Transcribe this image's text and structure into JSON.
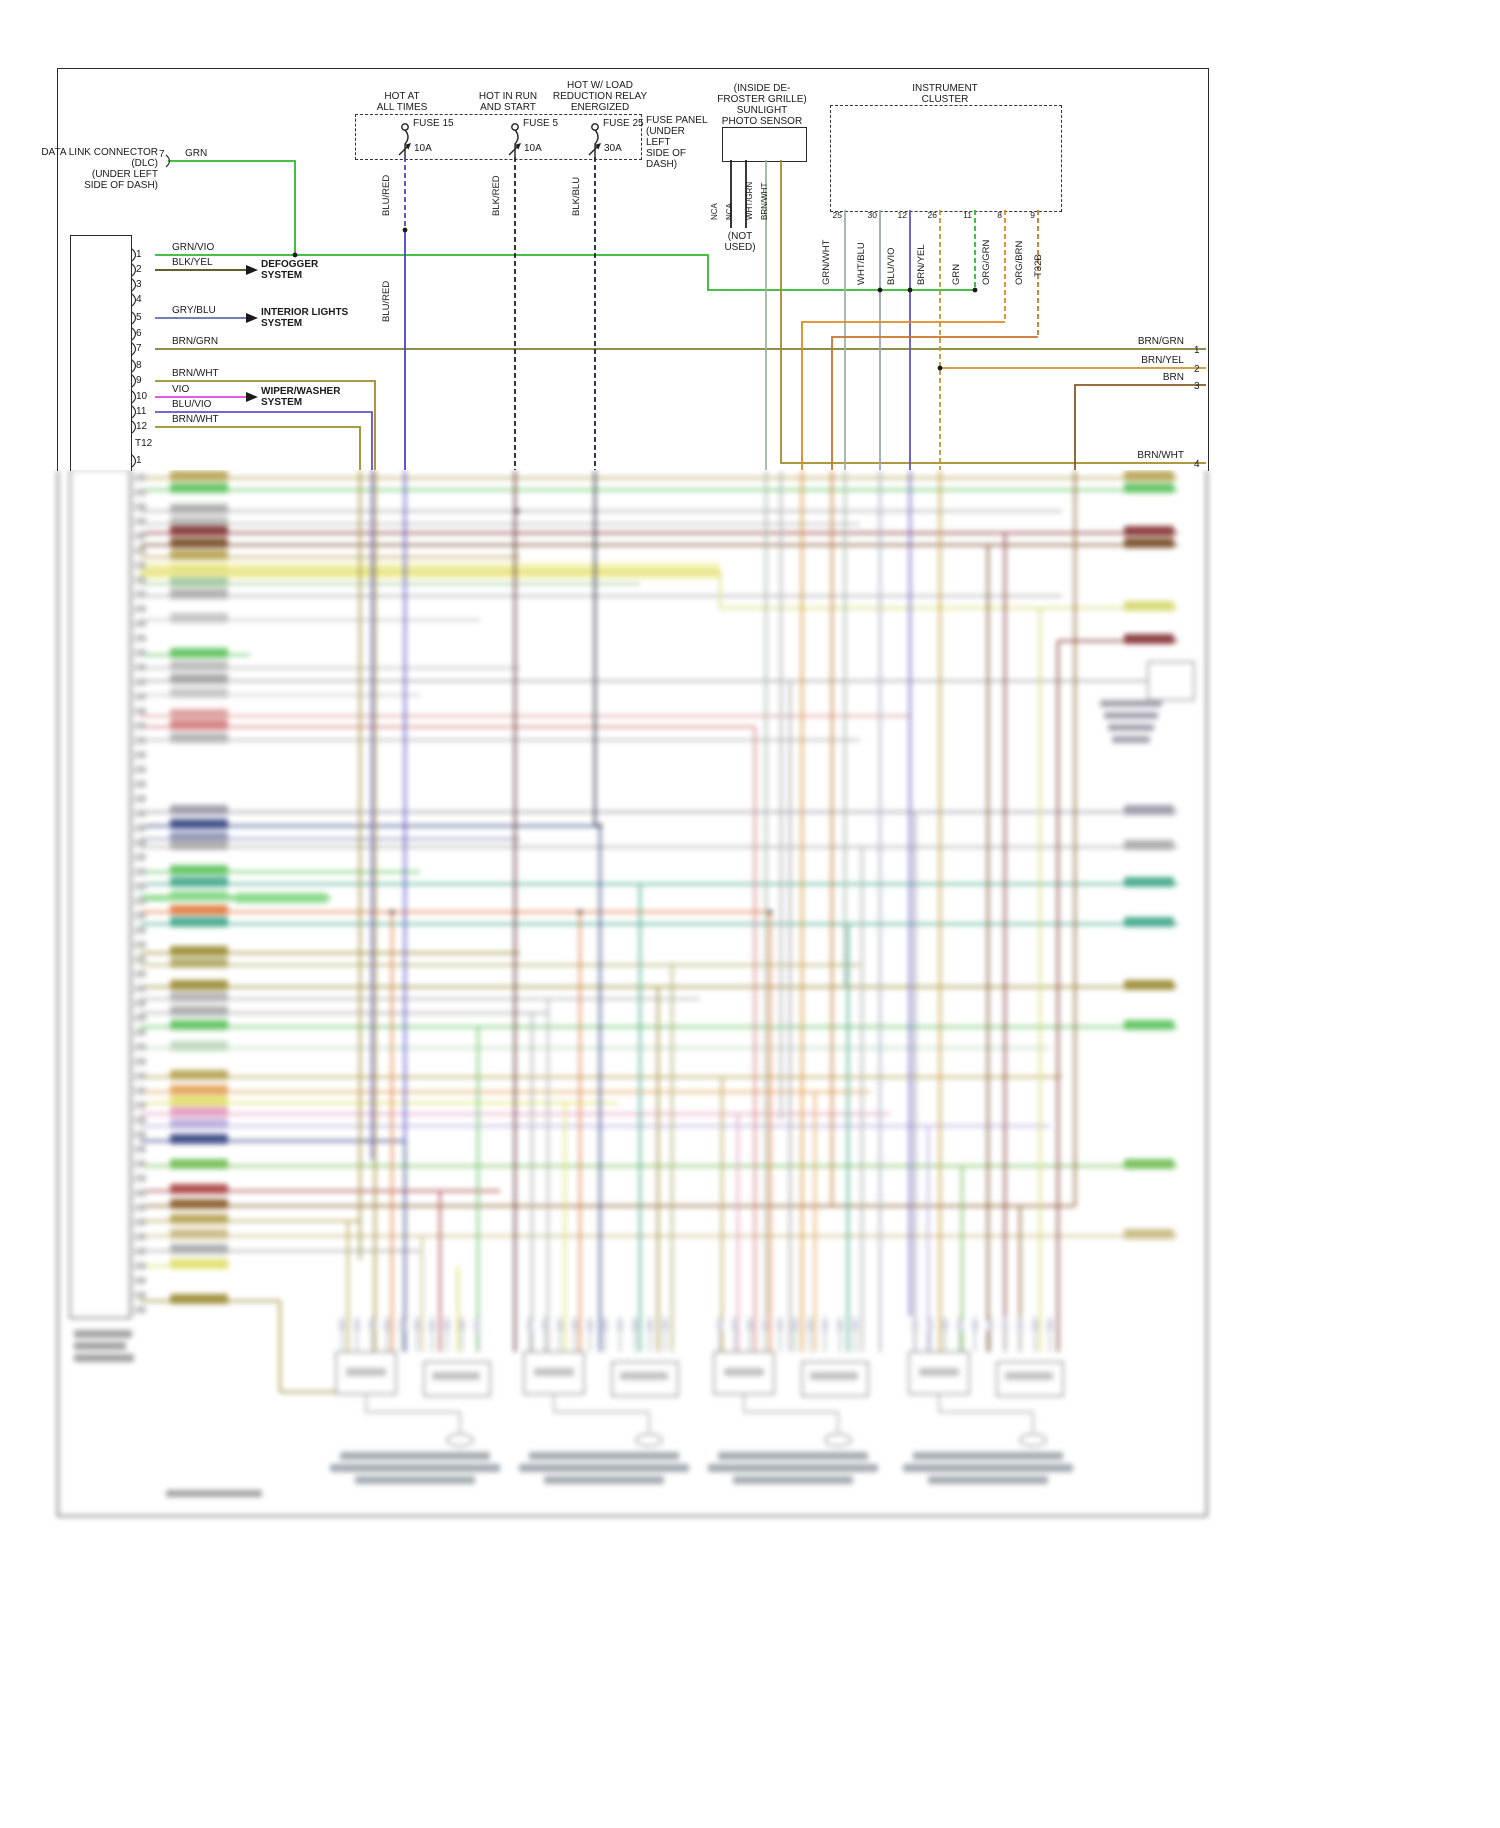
{
  "wire_colors": {
    "blk": "#222222",
    "grn": "#2db82d",
    "grn_vio": "#2db82d",
    "blk_yel": "#4a4a10",
    "gry_blu": "#5c6fae",
    "brn_grn": "#7d8030",
    "brn_wht": "#a08c28",
    "vio": "#e044e0",
    "blu_vio": "#6152cc",
    "blu_red": "#4a44cc",
    "blk_red": "#222222",
    "blk_blu": "#1c2438",
    "grn_wht": "#9fb3a0",
    "wht_blu": "#9aa4b8",
    "brn_yel": "#c8962e",
    "org_grn": "#e08a20",
    "org_brn": "#c87428",
    "brn": "#8a5a22",
    "wht_grn": "#9eb49e"
  },
  "fuse_panel": {
    "box_label": "FUSE PANEL\n(UNDER\nLEFT\nSIDE OF\nDASH)",
    "wire2": "BLU/RED",
    "feeds": [
      {
        "hot": "HOT AT\nALL TIMES",
        "fuse": "FUSE 15",
        "amps": "10A",
        "wire": "BLU/RED"
      },
      {
        "hot": "HOT IN RUN\nAND START",
        "fuse": "FUSE 5",
        "amps": "10A",
        "wire": "BLK/RED"
      },
      {
        "hot": "HOT W/ LOAD\nREDUCTION RELAY\nENERGIZED",
        "fuse": "FUSE 25",
        "amps": "30A",
        "wire": "BLK/BLU"
      }
    ]
  },
  "photo_sensor": {
    "label": "(INSIDE DE-\nFROSTER GRILLE)\nSUNLIGHT\nPHOTO SENSOR",
    "not_used": "(NOT\nUSED)",
    "leads": [
      "NCA",
      "NCA",
      "WHT/GRN",
      "BRN/WHT"
    ]
  },
  "instrument_cluster": {
    "label": "INSTRUMENT\nCLUSTER",
    "connector_id": "T32B",
    "pins": [
      {
        "pin": "25",
        "wire": "GRN/WHT"
      },
      {
        "pin": "30",
        "wire": "WHT/BLU"
      },
      {
        "pin": "12",
        "wire": "BLU/VIO"
      },
      {
        "pin": "26",
        "wire": "BRN/YEL"
      },
      {
        "pin": "11",
        "wire": "GRN"
      },
      {
        "pin": "8",
        "wire": "ORG/GRN"
      },
      {
        "pin": "9",
        "wire": "ORG/BRN"
      }
    ]
  },
  "dlc": {
    "label": "DATA LINK CONNECTOR\n(DLC)\n(UNDER LEFT\nSIDE OF DASH)",
    "pin": "7",
    "wire": "GRN"
  },
  "left_connector": {
    "section": "T12",
    "next_pin": "1",
    "pins": [
      {
        "pin": "1",
        "wire": "GRN/VIO"
      },
      {
        "pin": "2",
        "wire": "BLK/YEL"
      },
      {
        "pin": "3",
        "wire": ""
      },
      {
        "pin": "4",
        "wire": ""
      },
      {
        "pin": "5",
        "wire": "GRY/BLU"
      },
      {
        "pin": "6",
        "wire": ""
      },
      {
        "pin": "7",
        "wire": "BRN/GRN"
      },
      {
        "pin": "8",
        "wire": ""
      },
      {
        "pin": "9",
        "wire": "BRN/WHT"
      },
      {
        "pin": "10",
        "wire": "VIO"
      },
      {
        "pin": "11",
        "wire": "BLU/VIO"
      },
      {
        "pin": "12",
        "wire": "BRN/WHT"
      }
    ]
  },
  "systems": [
    "DEFOGGER\nSYSTEM",
    "INTERIOR LIGHTS\nSYSTEM",
    "WIPER/WASHER\nSYSTEM"
  ],
  "right_pins": [
    {
      "wire": "BRN/GRN",
      "pin": "1"
    },
    {
      "wire": "BRN/YEL",
      "pin": "2"
    },
    {
      "wire": "BRN",
      "pin": "3"
    },
    {
      "wire": "BRN/WHT",
      "pin": "4"
    }
  ]
}
